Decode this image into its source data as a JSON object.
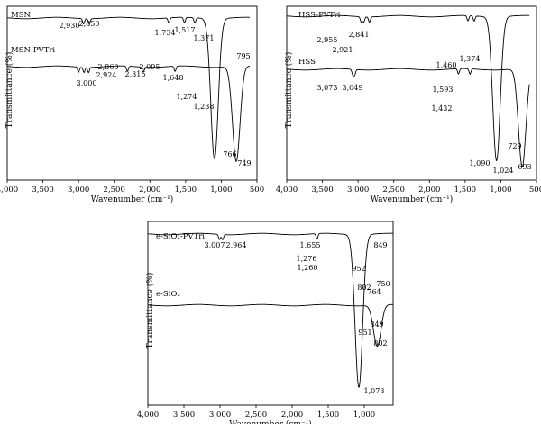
{
  "chart_data": [
    {
      "type": "line",
      "panel": "a",
      "xlabel": "Wavenumber (cm⁻¹)",
      "ylabel": "Transmittance (%)",
      "xlim": [
        4000,
        500
      ],
      "x_ticks": [
        "4,000",
        "3,500",
        "3,000",
        "2,500",
        "2,000",
        "1,500",
        "1,000",
        "500"
      ],
      "grid": false,
      "series": [
        {
          "name": "MSN",
          "peaks": [
            {
              "x": 2930,
              "label": "2,930"
            },
            {
              "x": 2850,
              "label": "2,850"
            },
            {
              "x": 1734,
              "label": "1,734"
            },
            {
              "x": 1517,
              "label": "1,517"
            },
            {
              "x": 1371,
              "label": "1,371"
            },
            {
              "x": 795,
              "label": "795"
            }
          ]
        },
        {
          "name": "MSN-PVTri",
          "peaks": [
            {
              "x": 3000,
              "label": "3,000"
            },
            {
              "x": 2924,
              "label": "2,924"
            },
            {
              "x": 2860,
              "label": "2,860"
            },
            {
              "x": 2316,
              "label": "2,316"
            },
            {
              "x": 2095,
              "label": "2,095"
            },
            {
              "x": 1648,
              "label": "1,648"
            },
            {
              "x": 1274,
              "label": "1,274"
            },
            {
              "x": 1238,
              "label": "1,238"
            },
            {
              "x": 766,
              "label": "766"
            },
            {
              "x": 749,
              "label": "749"
            }
          ]
        }
      ]
    },
    {
      "type": "line",
      "panel": "b",
      "xlabel": "Wavenumber (cm⁻¹)",
      "ylabel": "Transmittance (%)",
      "xlim": [
        4000,
        500
      ],
      "x_ticks": [
        "4,000",
        "3,500",
        "3,000",
        "2,500",
        "2,000",
        "1,500",
        "1,000",
        "500"
      ],
      "grid": false,
      "series": [
        {
          "name": "HSS-PVTri",
          "peaks": [
            {
              "x": 2955,
              "label": "2,955"
            },
            {
              "x": 2921,
              "label": "2,921"
            },
            {
              "x": 2841,
              "label": "2,841"
            },
            {
              "x": 1460,
              "label": "1,460"
            },
            {
              "x": 1374,
              "label": "1,374"
            }
          ]
        },
        {
          "name": "HSS",
          "peaks": [
            {
              "x": 3073,
              "label": "3,073"
            },
            {
              "x": 3049,
              "label": "3,049"
            },
            {
              "x": 1593,
              "label": "1,593"
            },
            {
              "x": 1432,
              "label": "1,432"
            },
            {
              "x": 1090,
              "label": "1,090"
            },
            {
              "x": 1024,
              "label": "1,024"
            },
            {
              "x": 729,
              "label": "729"
            },
            {
              "x": 693,
              "label": "693"
            }
          ]
        }
      ]
    },
    {
      "type": "line",
      "panel": "c",
      "xlabel": "Wavenumber (cm⁻¹)",
      "ylabel": "Transmittance (%)",
      "xlim": [
        4000,
        600
      ],
      "x_ticks": [
        "4,000",
        "3,500",
        "3,000",
        "2,500",
        "2,000",
        "1,500",
        "1,000"
      ],
      "grid": false,
      "series": [
        {
          "name": "e-SiO₂-PVTri",
          "peaks": [
            {
              "x": 3007,
              "label": "3,007"
            },
            {
              "x": 2964,
              "label": "2,964"
            },
            {
              "x": 1655,
              "label": "1,655"
            },
            {
              "x": 1276,
              "label": "1,276"
            },
            {
              "x": 1260,
              "label": "1,260"
            },
            {
              "x": 952,
              "label": "952"
            },
            {
              "x": 849,
              "label": "849"
            },
            {
              "x": 802,
              "label": "802"
            },
            {
              "x": 764,
              "label": "764"
            },
            {
              "x": 750,
              "label": "750"
            }
          ]
        },
        {
          "name": "e-SiO₂",
          "peaks": [
            {
              "x": 1073,
              "label": "1,073"
            },
            {
              "x": 951,
              "label": "951"
            },
            {
              "x": 849,
              "label": "849"
            },
            {
              "x": 802,
              "label": "802"
            }
          ]
        }
      ]
    }
  ]
}
